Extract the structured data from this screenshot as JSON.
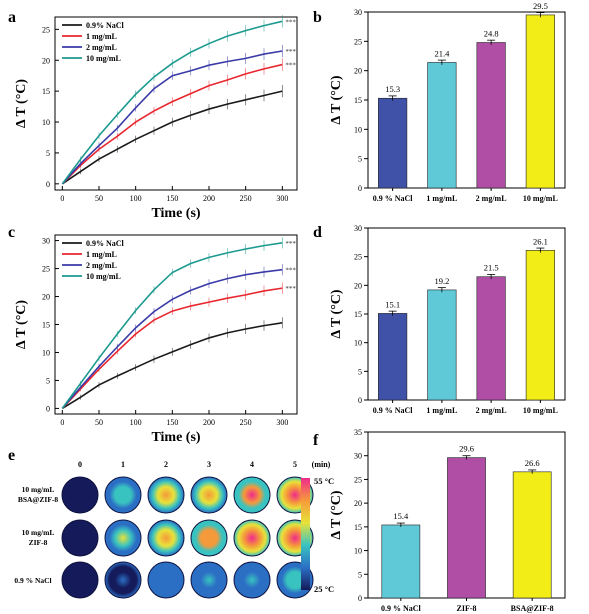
{
  "colors": {
    "nacl": "#1a1a1a",
    "c1": "#e8262e",
    "c2": "#3a3aa8",
    "c10": "#1c9a8f",
    "bar_nacl": "#3f52a8",
    "bar_1": "#5fc9d8",
    "bar_2": "#b04ea6",
    "bar_10": "#f2ec17",
    "bar_f1": "#5fc9d8",
    "bar_f2": "#b04ea6",
    "bar_f3": "#f2ec17"
  },
  "chart_data": [
    {
      "panel": "a",
      "type": "line",
      "xlabel": "Time (s)",
      "ylabel": "Δ T (°C)",
      "xlim": [
        -10,
        320
      ],
      "ylim": [
        -1,
        27
      ],
      "xticks": [
        0,
        50,
        100,
        150,
        200,
        250,
        300
      ],
      "yticks": [
        0,
        5,
        10,
        15,
        20,
        25
      ],
      "legend": [
        "0.9% NaCl",
        "1 mg/mL",
        "2 mg/mL",
        "10 mg/mL"
      ],
      "sig": "***",
      "series": [
        {
          "name": "0.9% NaCl",
          "color_key": "nacl",
          "x": [
            0,
            25,
            50,
            75,
            100,
            125,
            150,
            175,
            200,
            225,
            250,
            275,
            300
          ],
          "y": [
            0,
            2,
            4,
            5.6,
            7.2,
            8.6,
            10,
            11.1,
            12.1,
            12.9,
            13.6,
            14.3,
            15
          ]
        },
        {
          "name": "1 mg/mL",
          "color_key": "c1",
          "x": [
            0,
            25,
            50,
            75,
            100,
            125,
            150,
            175,
            200,
            225,
            250,
            275,
            300
          ],
          "y": [
            0,
            3,
            5.6,
            7.7,
            10,
            11.8,
            13.3,
            14.6,
            15.9,
            16.8,
            17.8,
            18.6,
            19.3
          ]
        },
        {
          "name": "2 mg/mL",
          "color_key": "c2",
          "x": [
            0,
            25,
            50,
            75,
            100,
            125,
            150,
            175,
            200,
            225,
            250,
            275,
            300
          ],
          "y": [
            0,
            3.3,
            6.2,
            9,
            12.3,
            15.4,
            17.5,
            18.3,
            19.2,
            19.8,
            20.3,
            21,
            21.5
          ]
        },
        {
          "name": "10 mg/mL",
          "color_key": "c10",
          "x": [
            0,
            25,
            50,
            75,
            100,
            125,
            150,
            175,
            200,
            225,
            250,
            275,
            300
          ],
          "y": [
            0,
            4,
            7.8,
            11.2,
            14.5,
            17.3,
            19.5,
            21.3,
            22.7,
            23.9,
            24.8,
            25.6,
            26.3
          ]
        }
      ]
    },
    {
      "panel": "b",
      "type": "bar",
      "ylabel": "Δ T (°C)",
      "ylim": [
        0,
        30
      ],
      "yticks": [
        0,
        5,
        10,
        15,
        20,
        25,
        30
      ],
      "categories": [
        "0.9 % NaCl",
        "1 mg/mL",
        "2 mg/mL",
        "10 mg/mL"
      ],
      "values": [
        15.3,
        21.4,
        24.8,
        29.5
      ],
      "labels": [
        "15.3",
        "21.4",
        "24.8",
        "29.5"
      ],
      "color_keys": [
        "bar_nacl",
        "bar_1",
        "bar_2",
        "bar_10"
      ]
    },
    {
      "panel": "c",
      "type": "line",
      "xlabel": "Time (s)",
      "ylabel": "Δ T (°C)",
      "xlim": [
        -10,
        320
      ],
      "ylim": [
        -1,
        31
      ],
      "xticks": [
        0,
        50,
        100,
        150,
        200,
        250,
        300
      ],
      "yticks": [
        0,
        5,
        10,
        15,
        20,
        25,
        30
      ],
      "legend": [
        "0.9% NaCl",
        "1 mg/mL",
        "2 mg/mL",
        "10 mg/mL"
      ],
      "sig": "***",
      "series": [
        {
          "name": "0.9% NaCl",
          "color_key": "nacl",
          "x": [
            0,
            25,
            50,
            75,
            100,
            125,
            150,
            175,
            200,
            225,
            250,
            275,
            300
          ],
          "y": [
            0,
            2,
            4.2,
            5.8,
            7.3,
            8.8,
            10.1,
            11.4,
            12.6,
            13.5,
            14.2,
            14.8,
            15.3
          ]
        },
        {
          "name": "1 mg/mL",
          "color_key": "c1",
          "x": [
            0,
            25,
            50,
            75,
            100,
            125,
            150,
            175,
            200,
            225,
            250,
            275,
            300
          ],
          "y": [
            0,
            3.5,
            7,
            10.2,
            13.3,
            15.8,
            17.4,
            18.3,
            19,
            19.7,
            20.3,
            21,
            21.5
          ]
        },
        {
          "name": "2 mg/mL",
          "color_key": "c2",
          "x": [
            0,
            25,
            50,
            75,
            100,
            125,
            150,
            175,
            200,
            225,
            250,
            275,
            300
          ],
          "y": [
            0,
            3.8,
            7.5,
            11,
            14.4,
            17.3,
            19.5,
            21.1,
            22.3,
            23.2,
            23.9,
            24.4,
            24.8
          ]
        },
        {
          "name": "10 mg/mL",
          "color_key": "c10",
          "x": [
            0,
            25,
            50,
            75,
            100,
            125,
            150,
            175,
            200,
            225,
            250,
            275,
            300
          ],
          "y": [
            0,
            4.5,
            9,
            13.3,
            17.5,
            21.2,
            24.3,
            25.9,
            27,
            27.8,
            28.5,
            29.1,
            29.6
          ]
        }
      ]
    },
    {
      "panel": "d",
      "type": "bar",
      "ylabel": "Δ T (°C)",
      "ylim": [
        0,
        30
      ],
      "yticks": [
        0,
        5,
        10,
        15,
        20,
        25,
        30
      ],
      "categories": [
        "0.9 % NaCl",
        "1 mg/mL",
        "2 mg/mL",
        "10 mg/mL"
      ],
      "values": [
        15.1,
        19.2,
        21.5,
        26.1
      ],
      "labels": [
        "15.1",
        "19.2",
        "21.5",
        "26.1"
      ],
      "color_keys": [
        "bar_nacl",
        "bar_1",
        "bar_2",
        "bar_10"
      ]
    },
    {
      "panel": "f",
      "type": "bar",
      "ylabel": "Δ T (°C)",
      "ylim": [
        0,
        35
      ],
      "yticks": [
        0,
        5,
        10,
        15,
        20,
        25,
        30,
        35
      ],
      "categories": [
        "0.9 % NaCl",
        "ZIF-8",
        "BSA@ZIF-8"
      ],
      "values": [
        15.4,
        29.6,
        26.6
      ],
      "labels": [
        "15.4",
        "29.6",
        "26.6"
      ],
      "color_keys": [
        "bar_f1",
        "bar_f2",
        "bar_f3"
      ]
    }
  ],
  "thermal": {
    "panel": "e",
    "time_labels": [
      "0",
      "1",
      "2",
      "3",
      "4",
      "5"
    ],
    "time_unit": "(min)",
    "rows": [
      {
        "label1": "10 mg/mL",
        "label2": "BSA@ZIF-8",
        "intensity": [
          0,
          0.45,
          0.7,
          0.82,
          0.9,
          0.95
        ]
      },
      {
        "label1": "10 mg/mL",
        "label2": "ZIF-8",
        "intensity": [
          0,
          0.5,
          0.78,
          0.88,
          0.95,
          1.0
        ]
      },
      {
        "label1": "0.9 % NaCl",
        "label2": "",
        "intensity": [
          0,
          0.12,
          0.22,
          0.3,
          0.35,
          0.4
        ]
      }
    ],
    "scale_max": "55 °C",
    "scale_min": "25 °C"
  },
  "panel_letters": {
    "a": "a",
    "b": "b",
    "c": "c",
    "d": "d",
    "e": "e",
    "f": "f"
  }
}
